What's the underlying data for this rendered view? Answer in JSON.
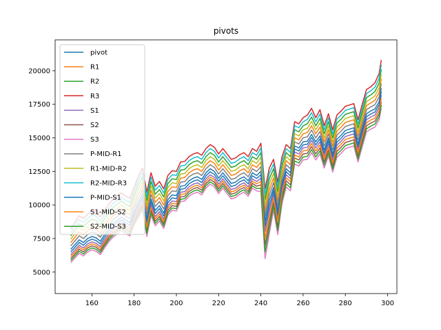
{
  "chart_data": {
    "type": "line",
    "title": "pivots",
    "xlabel": "",
    "ylabel": "",
    "xlim": [
      142.6,
      304.4
    ],
    "ylim": [
      3400,
      22300
    ],
    "xticks": [
      160,
      180,
      200,
      220,
      240,
      260,
      280,
      300
    ],
    "yticks": [
      5000,
      7500,
      10000,
      12500,
      15000,
      17500,
      20000
    ],
    "xtick_labels": [
      "160",
      "180",
      "200",
      "220",
      "240",
      "260",
      "280",
      "300"
    ],
    "ytick_labels": [
      "5000",
      "7500",
      "10000",
      "12500",
      "15000",
      "17500",
      "20000"
    ],
    "grid": false,
    "legend": "upper-left",
    "x": [
      150,
      152,
      154,
      156,
      158,
      160,
      162,
      164,
      166,
      168,
      170,
      172,
      174,
      176,
      178,
      180,
      182,
      184,
      186,
      188,
      190,
      192,
      194,
      196,
      198,
      200,
      202,
      204,
      206,
      208,
      210,
      212,
      214,
      216,
      218,
      220,
      222,
      224,
      226,
      228,
      230,
      232,
      234,
      236,
      238,
      240,
      242,
      244,
      246,
      248,
      250,
      252,
      254,
      256,
      258,
      260,
      262,
      264,
      266,
      268,
      270,
      272,
      274,
      276,
      278,
      280,
      282,
      284,
      286,
      288,
      290,
      292,
      294,
      296,
      297
    ],
    "series": [
      {
        "name": "pivot",
        "color": "#1f77b4",
        "values": [
          6700,
          7050,
          7400,
          7200,
          7500,
          7650,
          7550,
          7300,
          7800,
          8250,
          8600,
          8850,
          9100,
          8850,
          8700,
          9500,
          10200,
          10800,
          9000,
          10450,
          9600,
          9950,
          9400,
          10400,
          10750,
          10700,
          11400,
          11450,
          11800,
          12000,
          12100,
          11900,
          12400,
          12700,
          12500,
          12000,
          12400,
          12000,
          11600,
          11700,
          11950,
          12100,
          11800,
          12400,
          12200,
          12500,
          8800,
          10350,
          11300,
          9600,
          11650,
          12700,
          12400,
          14400,
          14250,
          14700,
          14750,
          15250,
          14700,
          15150,
          14100,
          15000,
          13800,
          14900,
          15200,
          15550,
          15650,
          15750,
          14550,
          15700,
          16800,
          17000,
          17150,
          17700,
          18700
        ]
      },
      {
        "name": "R1",
        "color": "#ff7f0e",
        "values": [
          7200,
          7600,
          8000,
          7800,
          8100,
          8300,
          8200,
          7900,
          8400,
          8850,
          9200,
          9450,
          9700,
          9450,
          9300,
          10100,
          10850,
          11450,
          9650,
          11100,
          10200,
          10550,
          10000,
          11000,
          11350,
          11300,
          12000,
          12050,
          12400,
          12600,
          12700,
          12500,
          13000,
          13300,
          13100,
          12600,
          13000,
          12600,
          12200,
          12300,
          12550,
          12700,
          12400,
          13000,
          12800,
          13200,
          9600,
          11150,
          12000,
          10300,
          12300,
          13300,
          13000,
          15000,
          14850,
          15300,
          15400,
          15900,
          15300,
          15800,
          14700,
          15600,
          14400,
          15500,
          15800,
          16150,
          16250,
          16350,
          15150,
          16300,
          17400,
          17600,
          17800,
          18400,
          19400
        ]
      },
      {
        "name": "R2",
        "color": "#2ca02c",
        "values": [
          7700,
          8150,
          8600,
          8400,
          8700,
          8950,
          8850,
          8500,
          9000,
          9450,
          9800,
          10050,
          10300,
          10050,
          9900,
          10700,
          11500,
          12100,
          10300,
          11750,
          10800,
          11150,
          10600,
          11600,
          11950,
          11900,
          12600,
          12650,
          13000,
          13200,
          13300,
          13100,
          13600,
          13900,
          13700,
          13200,
          13600,
          13200,
          12800,
          12900,
          13150,
          13300,
          13000,
          13600,
          13400,
          13900,
          10400,
          11950,
          12700,
          11000,
          12950,
          13900,
          13600,
          15600,
          15450,
          15900,
          16050,
          16550,
          15900,
          16450,
          15300,
          16200,
          15000,
          16100,
          16400,
          16750,
          16850,
          16950,
          15750,
          16900,
          18000,
          18200,
          18450,
          19100,
          20100
        ]
      },
      {
        "name": "R3",
        "color": "#d62728",
        "values": [
          8200,
          8700,
          9200,
          9000,
          9300,
          9600,
          9500,
          9100,
          9600,
          10050,
          10400,
          10650,
          10900,
          10650,
          10500,
          11300,
          12150,
          12750,
          10950,
          12400,
          11400,
          11750,
          11200,
          12200,
          12550,
          12500,
          13200,
          13250,
          13600,
          13800,
          13900,
          13700,
          14200,
          14500,
          14300,
          13800,
          14200,
          13800,
          13400,
          13500,
          13750,
          13900,
          13600,
          14200,
          14000,
          14600,
          11200,
          12750,
          13400,
          11700,
          13600,
          14500,
          14200,
          16200,
          16050,
          16500,
          16700,
          17200,
          16500,
          17100,
          15900,
          16800,
          15600,
          16700,
          17000,
          17350,
          17450,
          17550,
          16350,
          17500,
          18600,
          18800,
          19100,
          19800,
          20800
        ]
      },
      {
        "name": "S1",
        "color": "#9467bd",
        "values": [
          6300,
          6650,
          7000,
          6800,
          7100,
          7250,
          7150,
          6900,
          7400,
          7850,
          8200,
          8450,
          8700,
          8450,
          8300,
          9100,
          9750,
          10350,
          8550,
          10000,
          9150,
          9500,
          8950,
          9950,
          10300,
          10250,
          10950,
          11000,
          11350,
          11550,
          11650,
          11450,
          11950,
          12250,
          12050,
          11550,
          11950,
          11550,
          11150,
          11250,
          11500,
          11650,
          11350,
          11950,
          11750,
          12000,
          8000,
          9550,
          10800,
          9000,
          11200,
          12250,
          11950,
          13950,
          13800,
          14250,
          14300,
          14800,
          14250,
          14700,
          13650,
          14550,
          13350,
          14450,
          14750,
          15100,
          15200,
          15300,
          14100,
          15250,
          16350,
          16550,
          16700,
          17250,
          18200
        ]
      },
      {
        "name": "S2",
        "color": "#8c564b",
        "values": [
          6000,
          6350,
          6700,
          6500,
          6800,
          6950,
          6850,
          6600,
          7100,
          7550,
          7900,
          8150,
          8400,
          8150,
          8000,
          8800,
          9400,
          10000,
          8100,
          9600,
          8800,
          9150,
          8600,
          9600,
          9950,
          9900,
          10600,
          10650,
          11000,
          11200,
          11300,
          11100,
          11600,
          11900,
          11700,
          11200,
          11600,
          11200,
          10800,
          10900,
          11150,
          11300,
          11000,
          11600,
          11400,
          11500,
          7000,
          8700,
          10200,
          8400,
          10650,
          11800,
          11500,
          13500,
          13350,
          13800,
          13850,
          14350,
          13800,
          14250,
          13200,
          14100,
          12900,
          14000,
          14300,
          14650,
          14750,
          14850,
          13650,
          14800,
          15900,
          16100,
          16250,
          16800,
          17700
        ]
      },
      {
        "name": "S3",
        "color": "#e377c2",
        "values": [
          5700,
          6050,
          6400,
          6200,
          6500,
          6650,
          6550,
          6300,
          6800,
          7250,
          7600,
          7850,
          8100,
          7850,
          7700,
          8500,
          9050,
          9650,
          7650,
          9200,
          8450,
          8800,
          8250,
          9250,
          9600,
          9550,
          10250,
          10300,
          10650,
          10850,
          10950,
          10750,
          11250,
          11550,
          11350,
          10850,
          11250,
          10850,
          10450,
          10550,
          10800,
          10950,
          10650,
          11250,
          11050,
          11000,
          6000,
          7850,
          9600,
          7800,
          10100,
          11350,
          11050,
          13050,
          12900,
          13350,
          13400,
          13900,
          13350,
          13800,
          12750,
          13650,
          12450,
          13550,
          13850,
          14200,
          14300,
          14400,
          13200,
          14350,
          15450,
          15650,
          15800,
          16350,
          17200
        ]
      },
      {
        "name": "P-MID-R1",
        "color": "#7f7f7f",
        "values": [
          6950,
          7325,
          7700,
          7500,
          7800,
          7975,
          7875,
          7600,
          8100,
          8550,
          8900,
          9150,
          9400,
          9150,
          9000,
          9800,
          10525,
          11125,
          9325,
          10775,
          9900,
          10250,
          9700,
          10700,
          11050,
          11000,
          11700,
          11750,
          12100,
          12300,
          12400,
          12200,
          12700,
          13000,
          12800,
          12300,
          12700,
          12300,
          11900,
          12000,
          12250,
          12400,
          12100,
          12700,
          12500,
          12850,
          9200,
          10750,
          11650,
          9950,
          11975,
          13000,
          12700,
          14700,
          14550,
          15000,
          15075,
          15575,
          15000,
          15475,
          14400,
          15300,
          14100,
          15200,
          15500,
          15850,
          15950,
          16050,
          14850,
          16000,
          17100,
          17300,
          17475,
          18050,
          19050
        ]
      },
      {
        "name": "R1-MID-R2",
        "color": "#bcbd22",
        "values": [
          7450,
          7875,
          8300,
          8100,
          8400,
          8625,
          8525,
          8200,
          8700,
          9150,
          9500,
          9750,
          10000,
          9750,
          9600,
          10400,
          11175,
          11775,
          9975,
          11425,
          10500,
          10850,
          10300,
          11300,
          11650,
          11600,
          12300,
          12350,
          12700,
          12900,
          13000,
          12800,
          13300,
          13600,
          13400,
          12900,
          13300,
          12900,
          12500,
          12600,
          12850,
          13000,
          12700,
          13300,
          13100,
          13550,
          10000,
          11550,
          12350,
          10650,
          12625,
          13600,
          13300,
          15300,
          15150,
          15600,
          15725,
          16225,
          15600,
          16125,
          15000,
          15900,
          14700,
          15800,
          16100,
          16450,
          16550,
          16650,
          15450,
          16600,
          17700,
          17900,
          18125,
          18750,
          19750
        ]
      },
      {
        "name": "R2-MID-R3",
        "color": "#17becf",
        "values": [
          7950,
          8425,
          8900,
          8700,
          9000,
          9275,
          9175,
          8800,
          9300,
          9750,
          10100,
          10350,
          10600,
          10350,
          10200,
          11000,
          11825,
          12425,
          10625,
          12075,
          11100,
          11450,
          10900,
          11900,
          12250,
          12200,
          12900,
          12950,
          13300,
          13500,
          13600,
          13400,
          13900,
          14200,
          14000,
          13500,
          13900,
          13500,
          13100,
          13200,
          13450,
          13600,
          13300,
          13900,
          13700,
          14250,
          10800,
          12350,
          13050,
          11350,
          13275,
          14200,
          13900,
          15900,
          15750,
          16200,
          16375,
          16875,
          16200,
          16775,
          15600,
          16500,
          15300,
          16400,
          16700,
          17050,
          17150,
          17250,
          16050,
          17200,
          18300,
          18500,
          18775,
          19450,
          20450
        ]
      },
      {
        "name": "P-MID-S1",
        "color": "#1f77b4",
        "values": [
          6500,
          6850,
          7200,
          7000,
          7300,
          7450,
          7350,
          7100,
          7600,
          8050,
          8400,
          8650,
          8900,
          8650,
          8500,
          9300,
          9975,
          10575,
          8775,
          10225,
          9375,
          9725,
          9175,
          10175,
          10525,
          10475,
          11175,
          11225,
          11575,
          11775,
          11875,
          11675,
          12175,
          12475,
          12275,
          11775,
          12175,
          11775,
          11375,
          11475,
          11725,
          11875,
          11575,
          12175,
          11975,
          12250,
          8400,
          9950,
          11050,
          9300,
          11425,
          12475,
          12175,
          14175,
          14025,
          14475,
          14525,
          15025,
          14475,
          14925,
          13875,
          14775,
          13575,
          14675,
          14975,
          15325,
          15425,
          15525,
          14325,
          15475,
          16575,
          16775,
          16925,
          17475,
          18450
        ]
      },
      {
        "name": "S1-MID-S2",
        "color": "#ff7f0e",
        "values": [
          6150,
          6500,
          6850,
          6650,
          6950,
          7100,
          7000,
          6750,
          7250,
          7700,
          8050,
          8300,
          8550,
          8300,
          8150,
          8950,
          9575,
          10175,
          8325,
          9800,
          8975,
          9325,
          8775,
          9775,
          10125,
          10075,
          10775,
          10825,
          11175,
          11375,
          11475,
          11275,
          11775,
          12075,
          11875,
          11375,
          11775,
          11375,
          10975,
          11075,
          11325,
          11475,
          11175,
          11775,
          11575,
          11750,
          7500,
          9125,
          10500,
          8700,
          10925,
          12025,
          11725,
          13725,
          13575,
          14025,
          14075,
          14575,
          14025,
          14475,
          13425,
          14325,
          13125,
          14225,
          14525,
          14875,
          14975,
          15075,
          13875,
          15025,
          16125,
          16325,
          16475,
          17025,
          17950
        ]
      },
      {
        "name": "S2-MID-S3",
        "color": "#2ca02c",
        "values": [
          5850,
          6200,
          6550,
          6350,
          6650,
          6800,
          6700,
          6450,
          6950,
          7400,
          7750,
          8000,
          8250,
          8000,
          7850,
          8650,
          9225,
          9825,
          7875,
          9400,
          8625,
          8975,
          8425,
          9425,
          9775,
          9725,
          10425,
          10475,
          10825,
          11025,
          11125,
          10925,
          11425,
          11725,
          11525,
          11025,
          11425,
          11025,
          10625,
          10725,
          10975,
          11125,
          10825,
          11425,
          11225,
          11250,
          6500,
          8275,
          9900,
          8100,
          10375,
          11575,
          11275,
          13275,
          13125,
          13575,
          13625,
          14125,
          13575,
          14025,
          12975,
          13875,
          12675,
          13775,
          14075,
          14425,
          14525,
          14625,
          13425,
          14575,
          15675,
          15875,
          16025,
          16575,
          17450
        ]
      }
    ]
  }
}
